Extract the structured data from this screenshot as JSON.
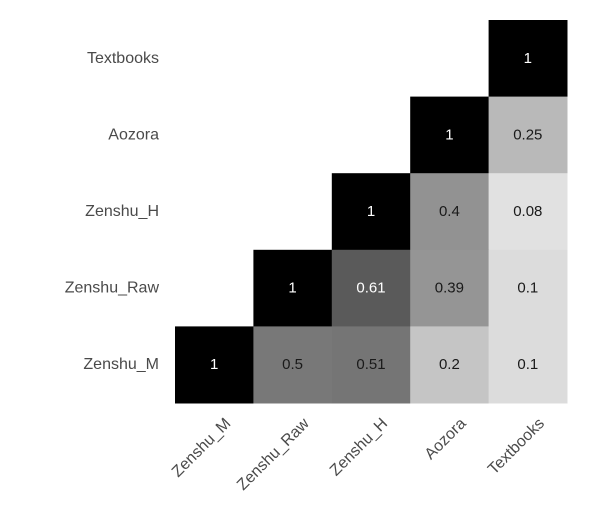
{
  "chart_data": {
    "type": "heatmap",
    "title": "",
    "xlabel": "",
    "ylabel": "",
    "x_labels": [
      "Zenshu_M",
      "Zenshu_Raw",
      "Zenshu_H",
      "Aozora",
      "Textbooks"
    ],
    "y_labels": [
      "Textbooks",
      "Aozora",
      "Zenshu_H",
      "Zenshu_Raw",
      "Zenshu_M"
    ],
    "value_range": [
      0,
      1
    ],
    "colormap": "greys",
    "grid": false,
    "legend": "none",
    "cells": [
      {
        "x": "Textbooks",
        "y": "Textbooks",
        "value": 1,
        "label": "1"
      },
      {
        "x": "Aozora",
        "y": "Aozora",
        "value": 1,
        "label": "1"
      },
      {
        "x": "Textbooks",
        "y": "Aozora",
        "value": 0.25,
        "label": "0.25"
      },
      {
        "x": "Zenshu_H",
        "y": "Zenshu_H",
        "value": 1,
        "label": "1"
      },
      {
        "x": "Aozora",
        "y": "Zenshu_H",
        "value": 0.4,
        "label": "0.4"
      },
      {
        "x": "Textbooks",
        "y": "Zenshu_H",
        "value": 0.08,
        "label": "0.08"
      },
      {
        "x": "Zenshu_Raw",
        "y": "Zenshu_Raw",
        "value": 1,
        "label": "1"
      },
      {
        "x": "Zenshu_H",
        "y": "Zenshu_Raw",
        "value": 0.61,
        "label": "0.61"
      },
      {
        "x": "Aozora",
        "y": "Zenshu_Raw",
        "value": 0.39,
        "label": "0.39"
      },
      {
        "x": "Textbooks",
        "y": "Zenshu_Raw",
        "value": 0.1,
        "label": "0.1"
      },
      {
        "x": "Zenshu_M",
        "y": "Zenshu_M",
        "value": 1,
        "label": "1"
      },
      {
        "x": "Zenshu_Raw",
        "y": "Zenshu_M",
        "value": 0.5,
        "label": "0.5"
      },
      {
        "x": "Zenshu_H",
        "y": "Zenshu_M",
        "value": 0.51,
        "label": "0.51"
      },
      {
        "x": "Aozora",
        "y": "Zenshu_M",
        "value": 0.2,
        "label": "0.2"
      },
      {
        "x": "Textbooks",
        "y": "Zenshu_M",
        "value": 0.1,
        "label": "0.1"
      }
    ]
  }
}
